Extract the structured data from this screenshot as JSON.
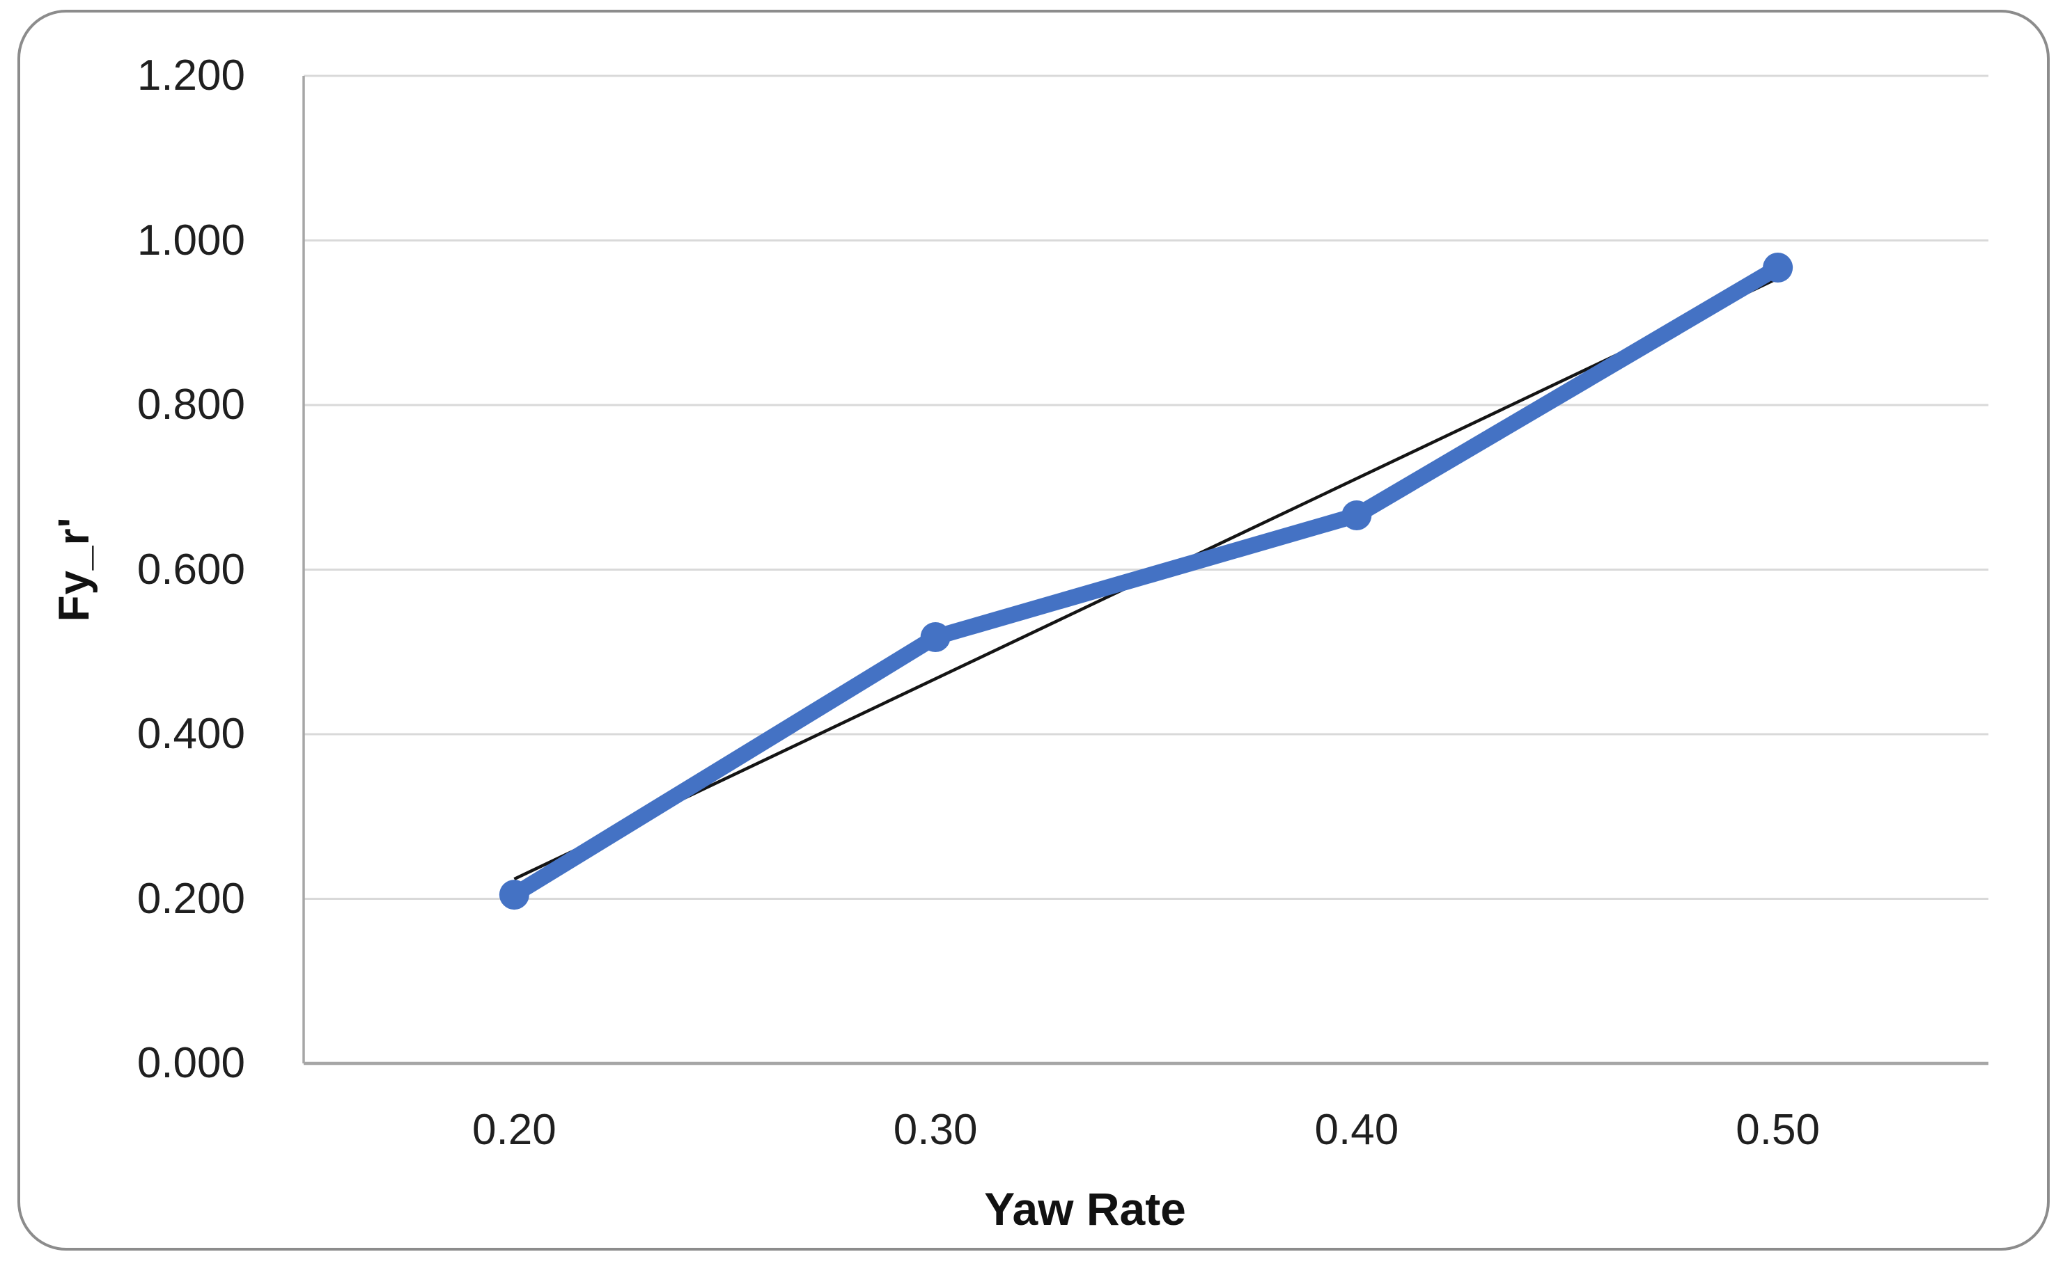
{
  "chart": {
    "border_color": "#8c8c8c",
    "background": "#ffffff"
  },
  "chart_data": {
    "type": "line",
    "title": "",
    "xlabel": "Yaw Rate",
    "ylabel": "Fy_r'",
    "x": [
      0.2,
      0.3,
      0.4,
      0.5
    ],
    "series": [
      {
        "name": "Fy_r'",
        "values": [
          0.205,
          0.518,
          0.666,
          0.967
        ],
        "color": "#4472c4",
        "marker": "circle"
      }
    ],
    "trendline": {
      "type": "linear",
      "x": [
        0.2,
        0.5
      ],
      "y": [
        0.224,
        0.954
      ],
      "color": "#141414"
    },
    "xlim": [
      0.15,
      0.55
    ],
    "ylim": [
      0,
      1.2
    ],
    "xticks": [
      "0.20",
      "0.30",
      "0.40",
      "0.50"
    ],
    "yticks": [
      "0.000",
      "0.200",
      "0.400",
      "0.600",
      "0.800",
      "1.000",
      "1.200"
    ],
    "grid": true,
    "legend": false,
    "gridline_color": "#d9d9d9",
    "axis_line_color": "#a6a6a6",
    "tick_text_color": "#1f1f1f"
  }
}
